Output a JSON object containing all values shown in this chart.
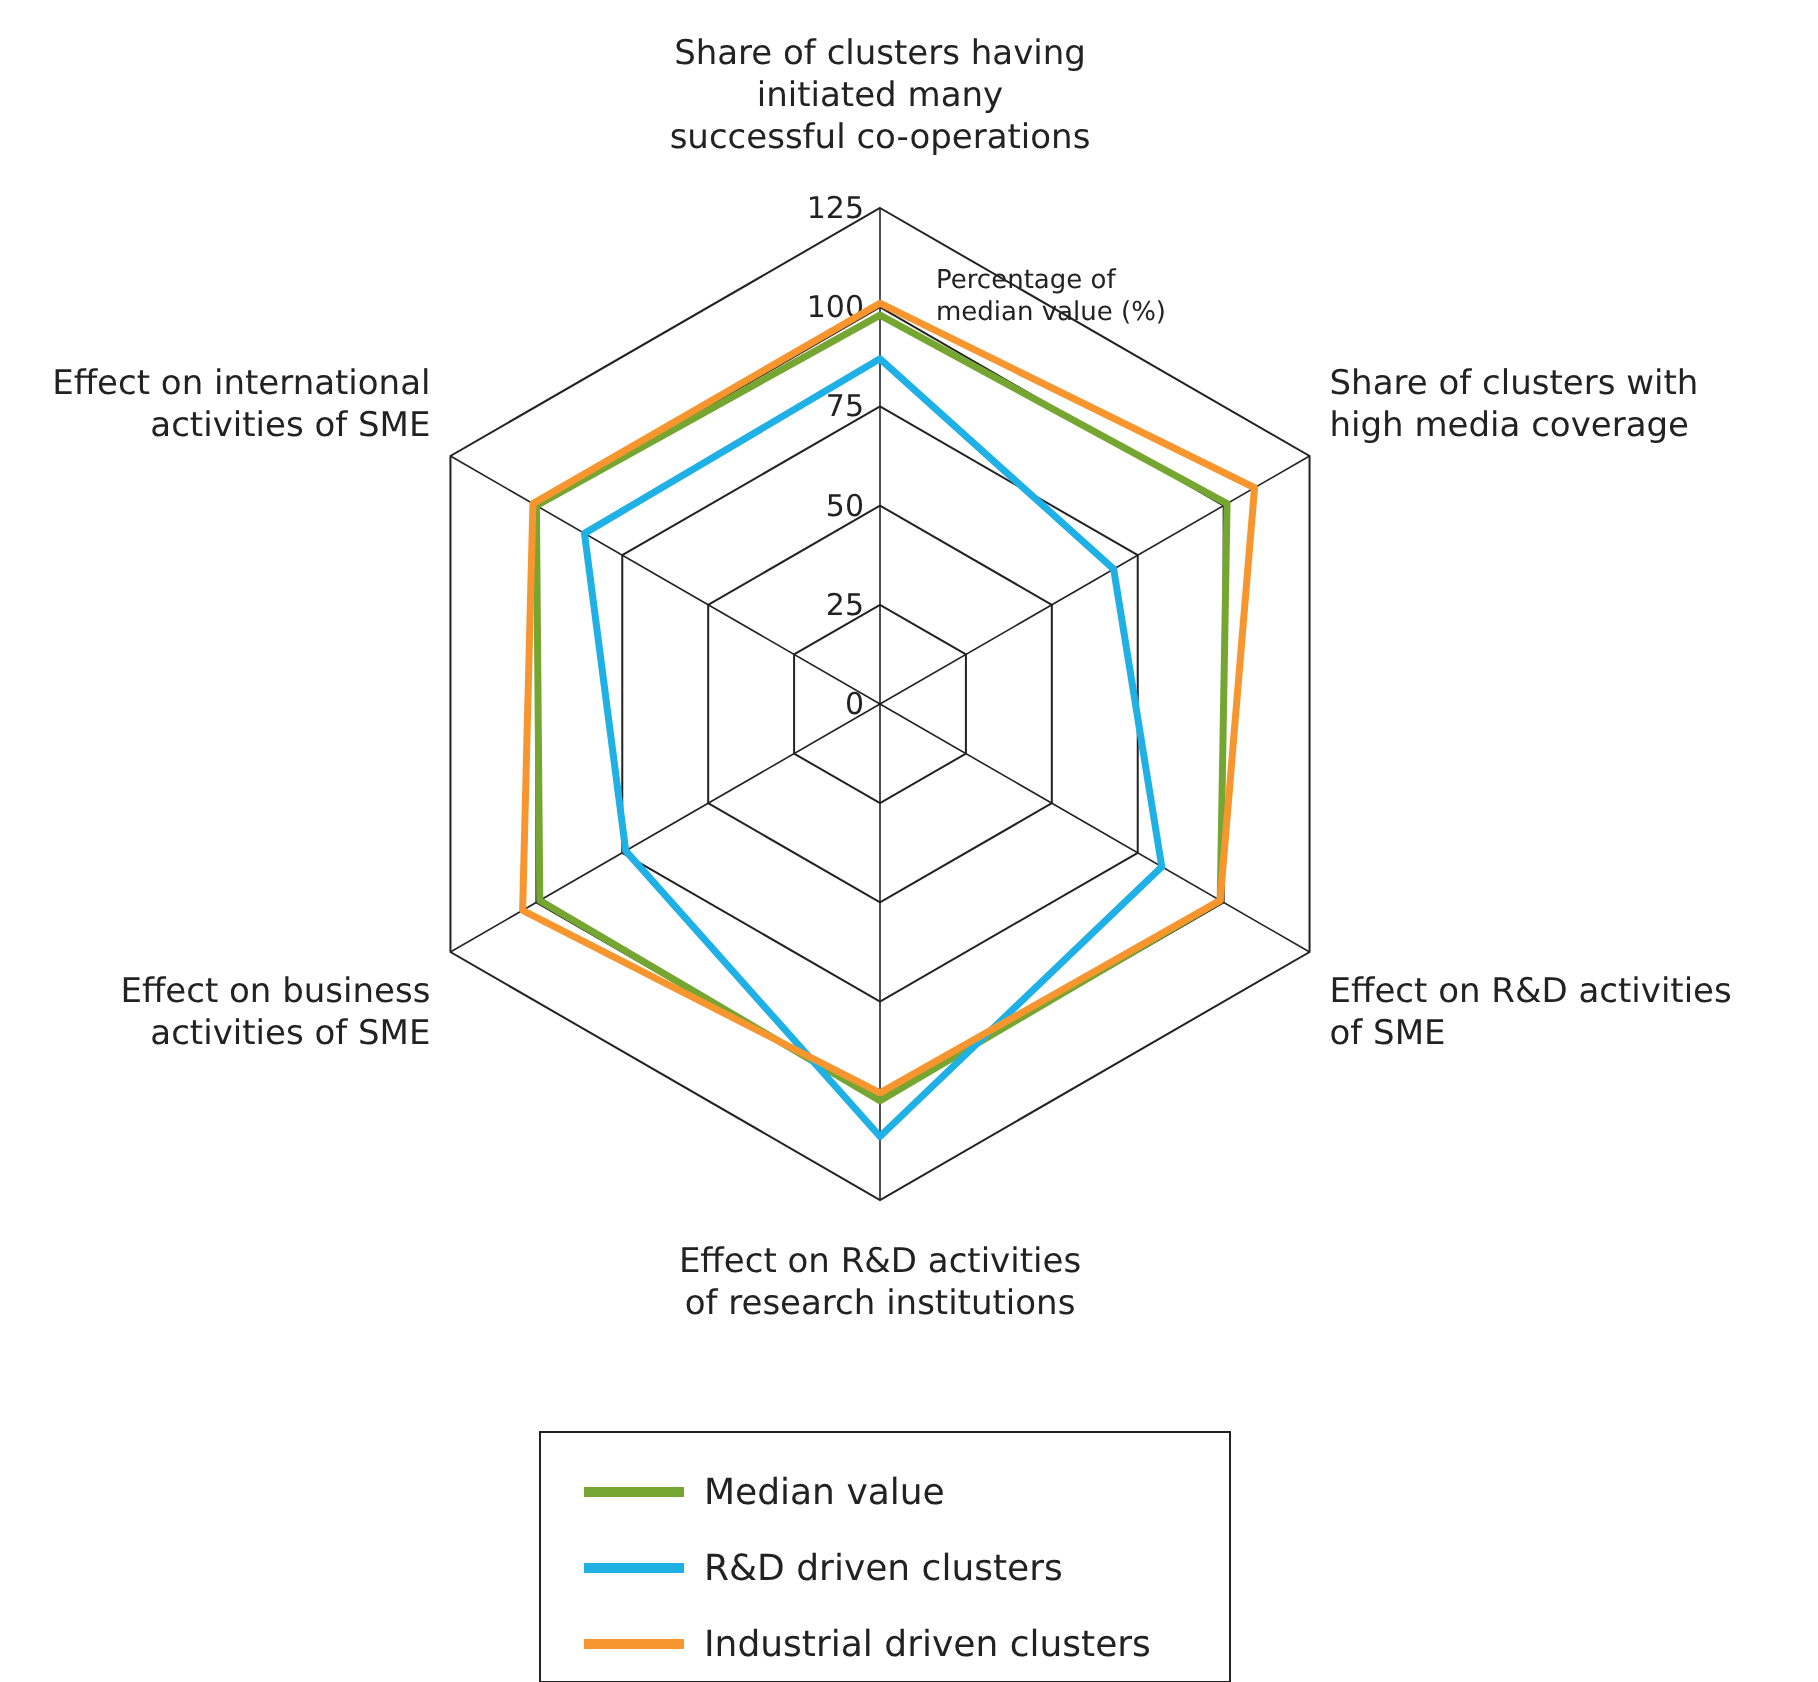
{
  "chart_data": {
    "type": "radar",
    "categories": [
      "Share of clusters having initiated many successful co-operations",
      "Share of clusters with high media coverage",
      "Effect on R&D activities of SME",
      "Effect on R&D activities of research institutions",
      "Effect on business activities of SME",
      "Effect on international activities of SME"
    ],
    "series": [
      {
        "name": "Median value",
        "color": "#76a632",
        "values": [
          98,
          101,
          99,
          100,
          99,
          100
        ]
      },
      {
        "name": "R&D driven clusters",
        "color": "#1fb0e6",
        "values": [
          87,
          68,
          82,
          109,
          74,
          86
        ]
      },
      {
        "name": "Industrial driven clusters",
        "color": "#f7962f",
        "values": [
          101,
          109,
          99,
          98,
          104,
          101
        ]
      }
    ],
    "ylim": [
      0,
      125
    ],
    "yticks": [
      0,
      25,
      50,
      75,
      100,
      125
    ],
    "legend": "bottom",
    "annotations": [
      "Percentage of median value (%)"
    ]
  }
}
